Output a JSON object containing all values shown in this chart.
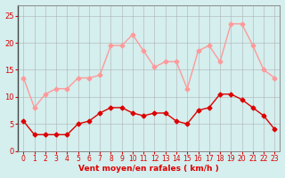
{
  "hours": [
    0,
    1,
    2,
    3,
    4,
    5,
    6,
    7,
    8,
    9,
    10,
    11,
    12,
    13,
    14,
    15,
    16,
    17,
    18,
    19,
    20,
    21,
    22,
    23
  ],
  "wind_avg": [
    5.5,
    3.0,
    3.0,
    3.0,
    3.0,
    5.0,
    5.5,
    7.0,
    8.0,
    8.0,
    7.0,
    6.5,
    7.0,
    7.0,
    5.5,
    5.0,
    7.5,
    8.0,
    10.5,
    10.5,
    9.5,
    8.0,
    6.5,
    4.0
  ],
  "wind_gust": [
    13.5,
    8.0,
    10.5,
    11.5,
    11.5,
    13.5,
    13.5,
    14.0,
    19.5,
    19.5,
    21.5,
    18.5,
    15.5,
    16.5,
    16.5,
    11.5,
    18.5,
    19.5,
    16.5,
    23.5,
    23.5,
    19.5,
    15.0,
    13.5
  ],
  "color_avg": "#dd0000",
  "color_gust": "#ff9999",
  "bg_color": "#d5eeee",
  "grid_color": "#aaaaaa",
  "xlabel": "Vent moyen/en rafales ( km/h )",
  "xlabel_color": "#dd0000",
  "ylabel_ticks": [
    0,
    5,
    10,
    15,
    20,
    25
  ],
  "ylim": [
    0,
    27
  ],
  "xlim": [
    -0.5,
    23.5
  ]
}
